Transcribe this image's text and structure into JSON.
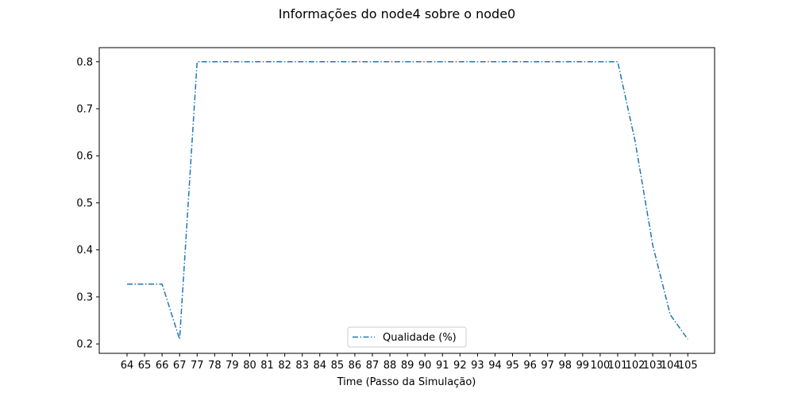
{
  "chart_data": {
    "type": "line",
    "title": "Informações do node4 sobre o node0",
    "xlabel": "Time (Passo da Simulação)",
    "ylabel": "",
    "categories": [
      "64",
      "65",
      "66",
      "67",
      "77",
      "78",
      "79",
      "80",
      "81",
      "82",
      "83",
      "84",
      "85",
      "86",
      "87",
      "88",
      "89",
      "90",
      "91",
      "92",
      "93",
      "94",
      "95",
      "96",
      "97",
      "98",
      "99",
      "100",
      "101",
      "102",
      "103",
      "104",
      "105"
    ],
    "series": [
      {
        "name": "Qualidade (%)",
        "color": "#1f77b4",
        "line_style": "dash-dot",
        "values": [
          0.327,
          0.327,
          0.327,
          0.21,
          0.8,
          0.8,
          0.8,
          0.8,
          0.8,
          0.8,
          0.8,
          0.8,
          0.8,
          0.8,
          0.8,
          0.8,
          0.8,
          0.8,
          0.8,
          0.8,
          0.8,
          0.8,
          0.8,
          0.8,
          0.8,
          0.8,
          0.8,
          0.8,
          0.8,
          0.63,
          0.41,
          0.262,
          0.21
        ]
      }
    ],
    "ylim": [
      0.18,
      0.83
    ],
    "yticks": [
      0.2,
      0.3,
      0.4,
      0.5,
      0.6,
      0.7,
      0.8
    ],
    "ytick_labels": [
      "0.2",
      "0.3",
      "0.4",
      "0.5",
      "0.6",
      "0.7",
      "0.8"
    ],
    "grid": false,
    "legend": "bottom-center"
  }
}
